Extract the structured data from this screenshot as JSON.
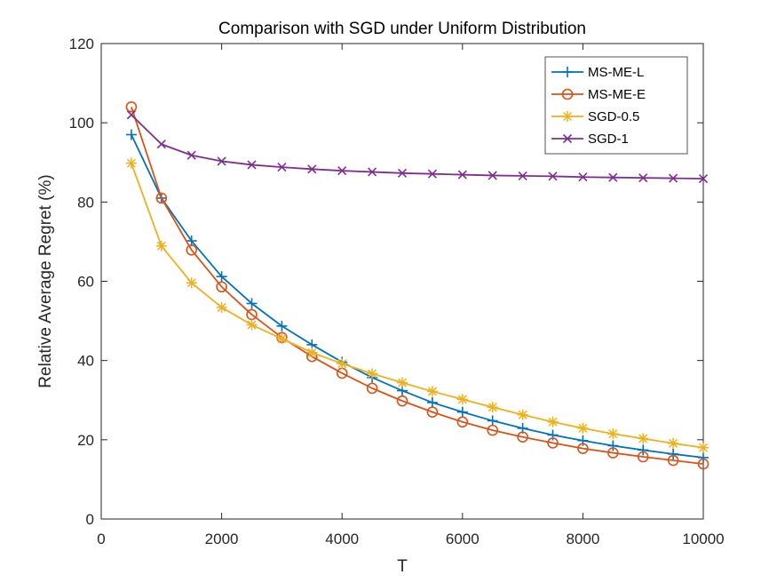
{
  "chart_data": {
    "type": "line",
    "title": "Comparison with SGD under Uniform Distribution",
    "xlabel": "T",
    "ylabel": "Relative Average Regret (%)",
    "xlim": [
      0,
      10000
    ],
    "ylim": [
      0,
      120
    ],
    "xticks": [
      0,
      2000,
      4000,
      6000,
      8000,
      10000
    ],
    "yticks": [
      0,
      20,
      40,
      60,
      80,
      100,
      120
    ],
    "grid": false,
    "legend_position": "top-right",
    "x": [
      500,
      1000,
      1500,
      2000,
      2500,
      3000,
      3500,
      4000,
      4500,
      5000,
      5500,
      6000,
      6500,
      7000,
      7500,
      8000,
      8500,
      9000,
      9500,
      10000
    ],
    "series": [
      {
        "name": "MS-ME-L",
        "color": "#0072BD",
        "marker": "plus",
        "values": [
          97,
          81,
          70.2,
          61.2,
          54.4,
          48.7,
          44,
          39.6,
          35.7,
          32.4,
          29.4,
          27,
          24.8,
          22.9,
          21.2,
          19.8,
          18.5,
          17.4,
          16.4,
          15.5
        ]
      },
      {
        "name": "MS-ME-E",
        "color": "#D95319",
        "marker": "circle",
        "values": [
          104,
          81,
          67.9,
          58.6,
          51.6,
          45.8,
          41,
          36.8,
          33,
          29.8,
          27,
          24.5,
          22.4,
          20.7,
          19.2,
          17.8,
          16.7,
          15.7,
          14.8,
          13.9
        ]
      },
      {
        "name": "SGD-0.5",
        "color": "#EDB120",
        "marker": "asterisk",
        "values": [
          89.8,
          68.9,
          59.6,
          53.4,
          49,
          45.5,
          42,
          39.2,
          36.7,
          34.4,
          32.2,
          30.2,
          28.2,
          26.3,
          24.5,
          22.9,
          21.5,
          20.3,
          19.1,
          18
        ]
      },
      {
        "name": "SGD-1",
        "color": "#7E2F8E",
        "marker": "x",
        "values": [
          102,
          94.6,
          91.8,
          90.3,
          89.4,
          88.8,
          88.3,
          87.9,
          87.6,
          87.3,
          87.1,
          86.9,
          86.7,
          86.6,
          86.5,
          86.3,
          86.2,
          86.1,
          86,
          85.9
        ]
      }
    ]
  }
}
